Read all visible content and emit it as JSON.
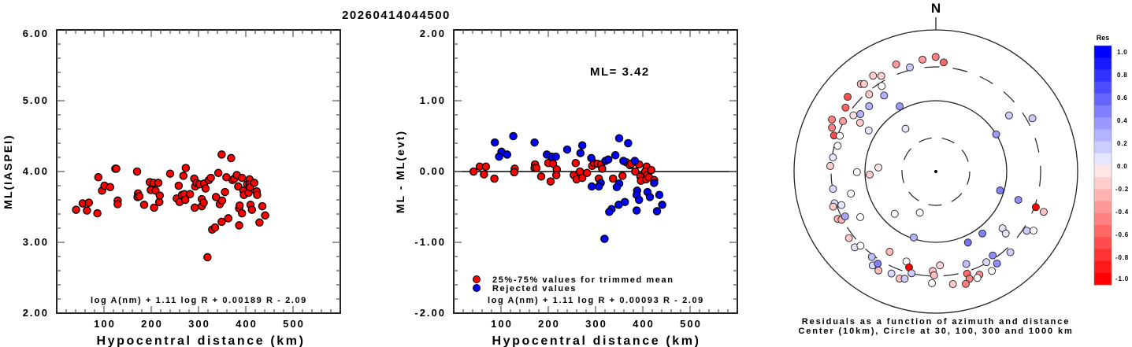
{
  "title": "20260414044500",
  "chart_data": [
    {
      "type": "scatter",
      "id": "magnitude-vs-distance",
      "xlabel": "Hypocentral distance (km)",
      "ylabel": "ML(IASPEI)",
      "xlim": [
        0,
        600
      ],
      "ylim": [
        2.0,
        6.0
      ],
      "xticks": [
        100,
        200,
        300,
        400,
        500
      ],
      "xtick_labels": [
        "100",
        "200",
        "300",
        "400",
        "500"
      ],
      "yticks": [
        2.0,
        3.0,
        4.0,
        5.0,
        6.0
      ],
      "ytick_labels": [
        "2.00",
        "3.00",
        "4.00",
        "5.00",
        "6.00"
      ],
      "annotation": "log A(nm) + 1.11 log R + 0.00189 R - 2.09",
      "marker_color": "#ff0000",
      "points": [
        [
          41,
          3.46
        ],
        [
          55,
          3.55
        ],
        [
          68,
          3.56
        ],
        [
          64,
          3.45
        ],
        [
          86,
          3.41
        ],
        [
          88,
          3.92
        ],
        [
          96,
          3.73
        ],
        [
          101,
          3.8
        ],
        [
          113,
          3.78
        ],
        [
          124,
          4.04
        ],
        [
          126,
          4.04
        ],
        [
          129,
          3.59
        ],
        [
          129,
          3.54
        ],
        [
          170,
          4.0
        ],
        [
          172,
          3.69
        ],
        [
          171,
          3.64
        ],
        [
          175,
          3.65
        ],
        [
          185,
          3.53
        ],
        [
          197,
          3.85
        ],
        [
          199,
          3.74
        ],
        [
          205,
          3.84
        ],
        [
          206,
          3.49
        ],
        [
          209,
          3.73
        ],
        [
          215,
          3.84
        ],
        [
          217,
          3.57
        ],
        [
          218,
          3.66
        ],
        [
          240,
          3.97
        ],
        [
          254,
          3.62
        ],
        [
          258,
          3.8
        ],
        [
          260,
          3.57
        ],
        [
          265,
          3.67
        ],
        [
          268,
          3.94
        ],
        [
          270,
          3.68
        ],
        [
          272,
          3.6
        ],
        [
          273,
          4.05
        ],
        [
          282,
          3.68
        ],
        [
          291,
          3.9
        ],
        [
          292,
          3.49
        ],
        [
          293,
          3.79
        ],
        [
          296,
          3.84
        ],
        [
          302,
          3.82
        ],
        [
          307,
          3.61
        ],
        [
          307,
          3.51
        ],
        [
          311,
          3.56
        ],
        [
          312,
          3.83
        ],
        [
          315,
          3.76
        ],
        [
          319,
          2.79
        ],
        [
          322,
          3.88
        ],
        [
          326,
          3.91
        ],
        [
          329,
          3.18
        ],
        [
          335,
          3.21
        ],
        [
          337,
          3.64
        ],
        [
          342,
          3.98
        ],
        [
          345,
          3.54
        ],
        [
          349,
          4.24
        ],
        [
          349,
          3.29
        ],
        [
          350,
          3.59
        ],
        [
          356,
          3.71
        ],
        [
          359,
          3.92
        ],
        [
          363,
          3.34
        ],
        [
          369,
          4.19
        ],
        [
          372,
          3.88
        ],
        [
          376,
          3.9
        ],
        [
          381,
          3.95
        ],
        [
          384,
          3.79
        ],
        [
          386,
          3.24
        ],
        [
          386,
          3.48
        ],
        [
          387,
          3.52
        ],
        [
          392,
          3.91
        ],
        [
          392,
          3.41
        ],
        [
          395,
          3.73
        ],
        [
          396,
          3.67
        ],
        [
          403,
          3.82
        ],
        [
          406,
          3.7
        ],
        [
          408,
          3.89
        ],
        [
          408,
          3.82
        ],
        [
          409,
          3.78
        ],
        [
          410,
          3.53
        ],
        [
          413,
          3.46
        ],
        [
          418,
          3.84
        ],
        [
          423,
          3.72
        ],
        [
          424,
          3.67
        ],
        [
          429,
          3.28
        ],
        [
          435,
          3.51
        ],
        [
          441,
          3.38
        ]
      ]
    },
    {
      "type": "scatter",
      "id": "residual-vs-distance",
      "xlabel": "Hypocentral distance (km)",
      "ylabel": "ML - ML(evt)",
      "xlim": [
        0,
        600
      ],
      "ylim": [
        -2.0,
        2.0
      ],
      "xticks": [
        100,
        200,
        300,
        400,
        500
      ],
      "xtick_labels": [
        "100",
        "200",
        "300",
        "400",
        "500"
      ],
      "yticks": [
        -2.0,
        -1.0,
        0.0,
        1.0,
        2.0
      ],
      "ytick_labels": [
        "-2.00",
        "-1.00",
        "0.00",
        "1.00",
        "2.00"
      ],
      "reference_line": 0.0,
      "ml_label": "ML= 3.42",
      "annotation": "log A(nm) + 1.11 log R + 0.00093 R - 2.09",
      "legend_position": "bottom-left",
      "series": [
        {
          "name": "25%-75% values for trimmed mean",
          "color": "#ff0000",
          "points": [
            [
              42,
              0.0
            ],
            [
              55,
              0.07
            ],
            [
              68,
              0.07
            ],
            [
              64,
              -0.04
            ],
            [
              86,
              -0.1
            ],
            [
              129,
              0.04
            ],
            [
              128,
              -0.01
            ],
            [
              172,
              0.1
            ],
            [
              171,
              0.05
            ],
            [
              175,
              0.05
            ],
            [
              185,
              -0.07
            ],
            [
              200,
              0.12
            ],
            [
              210,
              0.11
            ],
            [
              218,
              0.03
            ],
            [
              217,
              -0.05
            ],
            [
              205,
              -0.14
            ],
            [
              258,
              0.12
            ],
            [
              254,
              -0.05
            ],
            [
              260,
              -0.11
            ],
            [
              267,
              0.0
            ],
            [
              272,
              -0.09
            ],
            [
              282,
              -0.02
            ],
            [
              293,
              0.08
            ],
            [
              297,
              0.12
            ],
            [
              304,
              0.11
            ],
            [
              312,
              0.1
            ],
            [
              314,
              0.04
            ],
            [
              307,
              -0.1
            ],
            [
              337,
              -0.1
            ],
            [
              357,
              -0.06
            ],
            [
              365,
              0.13
            ],
            [
              373,
              0.09
            ],
            [
              376,
              0.11
            ],
            [
              392,
              0.1
            ],
            [
              384,
              0.0
            ],
            [
              395,
              -0.07
            ],
            [
              396,
              -0.13
            ],
            [
              408,
              0.07
            ],
            [
              405,
              0.0
            ],
            [
              409,
              -0.05
            ],
            [
              407,
              -0.11
            ],
            [
              413,
              -0.08
            ],
            [
              418,
              0.02
            ],
            [
              424,
              -0.12
            ]
          ]
        },
        {
          "name": "Rejected values",
          "color": "#0000ff",
          "points": [
            [
              87,
              0.41
            ],
            [
              101,
              0.28
            ],
            [
              96,
              0.21
            ],
            [
              113,
              0.24
            ],
            [
              126,
              0.5
            ],
            [
              171,
              0.41
            ],
            [
              197,
              0.24
            ],
            [
              207,
              0.21
            ],
            [
              216,
              0.21
            ],
            [
              240,
              0.31
            ],
            [
              272,
              0.37
            ],
            [
              268,
              0.26
            ],
            [
              291,
              0.19
            ],
            [
              292,
              -0.21
            ],
            [
              311,
              -0.16
            ],
            [
              307,
              -0.21
            ],
            [
              321,
              0.15
            ],
            [
              327,
              0.17
            ],
            [
              342,
              0.23
            ],
            [
              350,
              0.47
            ],
            [
              369,
              0.4
            ],
            [
              350,
              -0.17
            ],
            [
              345,
              -0.22
            ],
            [
              359,
              0.15
            ],
            [
              383,
              0.15
            ],
            [
              424,
              -0.16
            ],
            [
              388,
              -0.27
            ],
            [
              387,
              -0.33
            ],
            [
              392,
              -0.4
            ],
            [
              410,
              -0.29
            ],
            [
              415,
              -0.36
            ],
            [
              435,
              -0.33
            ],
            [
              441,
              -0.47
            ],
            [
              430,
              -0.56
            ],
            [
              387,
              -0.55
            ],
            [
              362,
              -0.43
            ],
            [
              349,
              -0.47
            ],
            [
              334,
              -0.53
            ],
            [
              329,
              -0.57
            ],
            [
              319,
              -0.95
            ]
          ]
        }
      ]
    },
    {
      "type": "scatter",
      "id": "residual-azimuth-polar",
      "north_label": "N",
      "caption_line1": "Residuals as a function of azimuth and distance",
      "caption_line2": "Center (10km), Circle at 30, 100, 300 and 1000 km",
      "center_km": 10,
      "circles_km": [
        30,
        100,
        300,
        1000
      ],
      "colorbar": {
        "title": "Res",
        "range": [
          -1.0,
          1.0
        ],
        "labels": [
          "1.0",
          "0.8",
          "0.6",
          "0.4",
          "0.2",
          "0.0",
          "-0.2",
          "-0.4",
          "-0.6",
          "-0.8",
          "-1.0"
        ],
        "positive_color": "#0000ff",
        "negative_color": "#ff0000",
        "zero_color": "#ffffff"
      },
      "points_az_dist_res": [
        [
          339.7,
          411,
          -0.4
        ],
        [
          346,
          328,
          0.2
        ],
        [
          353.2,
          390,
          -0.4
        ],
        [
          359.9,
          415,
          -0.5
        ],
        [
          4.1,
          351,
          -0.6
        ],
        [
          326.8,
          414,
          -0.2
        ],
        [
          330.3,
          358,
          -0.2
        ],
        [
          319.4,
          424,
          -0.3
        ],
        [
          320.7,
          396,
          -0.2
        ],
        [
          327.7,
          268,
          0.0
        ],
        [
          319.2,
          275,
          -0.2
        ],
        [
          325.8,
          199,
          0.3
        ],
        [
          310.3,
          428,
          -0.7
        ],
        [
          305.3,
          364,
          -0.6
        ],
        [
          314.4,
          208,
          0.3
        ],
        [
          331,
          113,
          0.4
        ],
        [
          304.3,
          256,
          -0.1
        ],
        [
          307.3,
          218,
          0.3
        ],
        [
          296.6,
          436,
          -0.5
        ],
        [
          298.5,
          310,
          -0.4
        ],
        [
          302.8,
          187,
          -0.2
        ],
        [
          292.9,
          390,
          -0.5
        ],
        [
          301.5,
          129,
          0.1
        ],
        [
          324.7,
          55,
          0.1
        ],
        [
          52.5,
          200,
          0.2
        ],
        [
          61.1,
          359,
          0.2
        ],
        [
          289.5,
          334,
          -0.7
        ],
        [
          290.4,
          279,
          0.0
        ],
        [
          58.3,
          100,
          0.4
        ],
        [
          284.7,
          270,
          0.0
        ],
        [
          277.8,
          292,
          0.1
        ],
        [
          273,
          310,
          -0.2
        ],
        [
          274,
          65,
          -0.1
        ],
        [
          269.6,
          130,
          0.0
        ],
        [
          267.3,
          86,
          -0.2
        ],
        [
          260.4,
          296,
          0.15
        ],
        [
          255.4,
          173,
          0.0
        ],
        [
          106.4,
          88,
          0.5
        ],
        [
          109,
          170,
          0.45
        ],
        [
          252.6,
          315,
          0.15
        ],
        [
          251.1,
          340,
          -0.2
        ],
        [
          250.4,
          259,
          0.1
        ],
        [
          109.6,
          314,
          -1.0
        ],
        [
          110.5,
          421,
          -0.25
        ],
        [
          224.2,
          68,
          0.0
        ],
        [
          201.3,
          42,
          0.0
        ],
        [
          244.2,
          345,
          -0.3
        ],
        [
          242.9,
          312,
          -0.3
        ],
        [
          243.7,
          268,
          0.35
        ],
        [
          238.9,
          176,
          0.0
        ],
        [
          130.4,
          172,
          0.1
        ],
        [
          131.6,
          208,
          0.1
        ],
        [
          123.1,
          339,
          0.2
        ],
        [
          121.2,
          408,
          0.0
        ],
        [
          143.1,
          124,
          0.5
        ],
        [
          155.7,
          126,
          0.55
        ],
        [
          198.5,
          96,
          0.3
        ],
        [
          232.5,
          351,
          -0.2
        ],
        [
          226.9,
          368,
          0.1
        ],
        [
          225.4,
          311,
          0.0
        ],
        [
          209.9,
          203,
          -0.25
        ],
        [
          137.3,
          355,
          0.2
        ],
        [
          145.9,
          270,
          0.45
        ],
        [
          216.8,
          322,
          0.25
        ],
        [
          213.9,
          396,
          0.15
        ],
        [
          212.2,
          345,
          0.5
        ],
        [
          210.1,
          412,
          -0.25
        ],
        [
          203.5,
          372,
          0.15
        ],
        [
          198.7,
          394,
          -0.25
        ],
        [
          196.2,
          377,
          0.2
        ],
        [
          198.1,
          217,
          0.0
        ],
        [
          195.6,
          254,
          -1.0
        ],
        [
          193.4,
          300,
          0.2
        ],
        [
          181.8,
          254,
          -0.25
        ],
        [
          181,
          292,
          -0.25
        ],
        [
          177.5,
          212,
          -0.15
        ],
        [
          182,
          378,
          0.0
        ],
        [
          171.4,
          405,
          -0.2
        ],
        [
          161.8,
          237,
          0.25
        ],
        [
          163,
          322,
          -0.6
        ],
        [
          162.6,
          386,
          -0.5
        ],
        [
          165.1,
          438,
          -0.5
        ],
        [
          157.1,
          380,
          -0.45
        ],
        [
          158.7,
          410,
          0.0
        ],
        [
          150.9,
          292,
          0.15
        ],
        [
          146.4,
          362,
          0.45
        ],
        [
          150.6,
          408,
          0.0
        ]
      ]
    }
  ]
}
